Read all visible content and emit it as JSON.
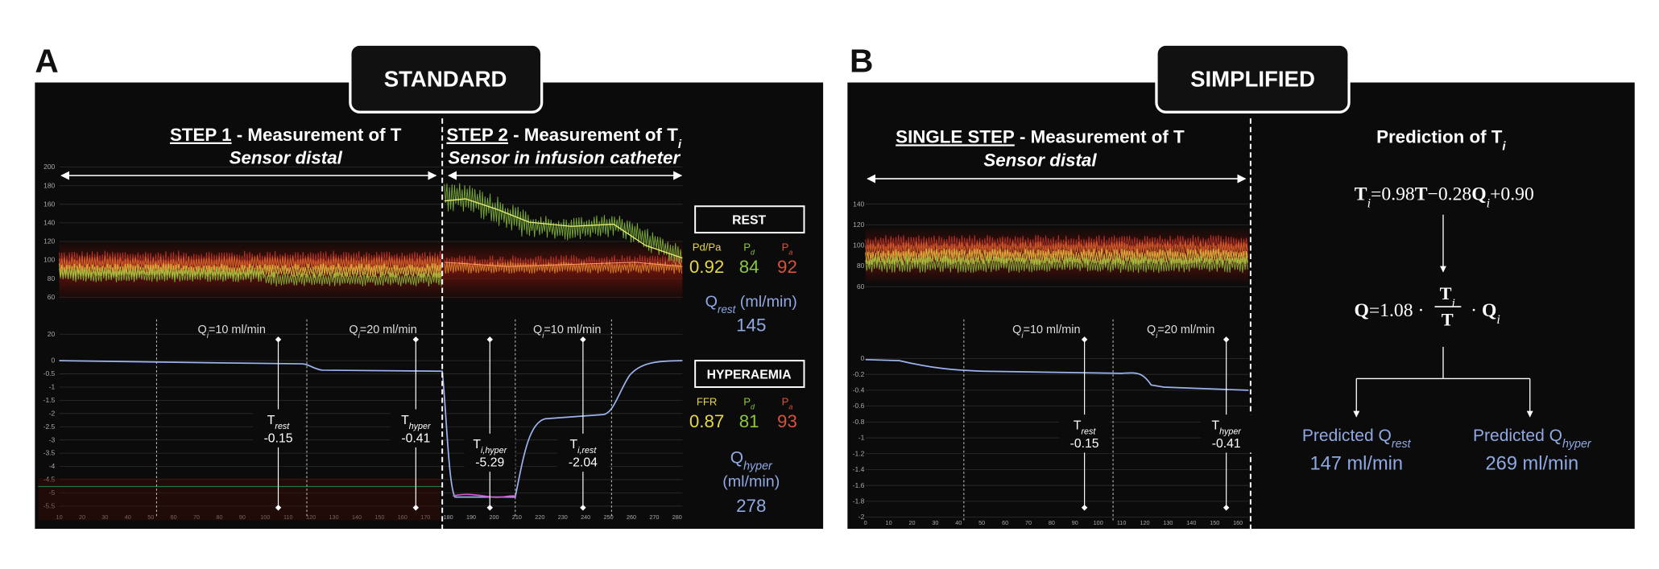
{
  "panel_a": {
    "label": "A",
    "tab": "STANDARD",
    "step1": {
      "title": "STEP 1",
      "rest": " - Measurement of T",
      "subtitle": "Sensor distal"
    },
    "step2": {
      "title": "STEP 2",
      "rest": " - Measurement of T",
      "sub": "i",
      "subtitle": "Sensor in infusion catheter"
    },
    "upper_ticks": [
      200,
      180,
      160,
      140,
      120,
      100,
      80,
      60
    ],
    "lower_ticks": [
      20,
      0,
      -0.5,
      -1,
      -1.5,
      -2,
      -2.5,
      -3,
      -3.5,
      -4,
      -4.5,
      -5,
      -5.5
    ],
    "x_ticks": [
      10,
      20,
      30,
      40,
      50,
      60,
      70,
      80,
      90,
      100,
      110,
      120,
      130,
      140,
      150,
      160,
      170,
      180,
      190,
      200,
      210,
      220,
      230,
      240,
      250,
      260,
      270,
      280
    ],
    "flows": [
      {
        "symbol": "Q",
        "sub": "i",
        "text": "=10 ml/min"
      },
      {
        "symbol": "Q",
        "sub": "i",
        "text": "=20 ml/min"
      },
      {
        "symbol": "Q",
        "sub": "i",
        "text": "=10 ml/min"
      }
    ],
    "markers": [
      {
        "symbol": "T",
        "sub": "rest",
        "value": -0.15
      },
      {
        "symbol": "T",
        "sub": "hyper",
        "value": -0.41
      },
      {
        "symbol": "T",
        "sub": "i,hyper",
        "value": -5.29
      },
      {
        "symbol": "T",
        "sub": "i,rest",
        "value": -2.04
      }
    ],
    "rest": {
      "title": "REST",
      "labels": [
        {
          "symbol": "Pd/Pa"
        },
        {
          "symbol": "P",
          "sub": "d"
        },
        {
          "symbol": "P",
          "sub": "a"
        }
      ],
      "values": [
        0.92,
        84,
        92
      ],
      "flow": {
        "symbol": "Q",
        "sub": "rest",
        "unit": " (ml/min)",
        "value": 145
      }
    },
    "hyperaemia": {
      "title": "HYPERAEMIA",
      "labels": [
        {
          "symbol": "FFR"
        },
        {
          "symbol": "P",
          "sub": "d"
        },
        {
          "symbol": "P",
          "sub": "a"
        }
      ],
      "values": [
        0.87,
        81,
        93
      ],
      "flow": {
        "symbol": "Q",
        "sub": "hyper",
        "unit": "(ml/min)",
        "value": 278
      }
    }
  },
  "panel_b": {
    "label": "B",
    "tab": "SIMPLIFIED",
    "step": {
      "title": "SINGLE STEP",
      "rest": " - Measurement of T",
      "subtitle": "Sensor distal"
    },
    "upper_ticks": [
      140,
      120,
      100,
      80,
      60
    ],
    "lower_ticks": [
      0,
      -0.2,
      -0.4,
      -0.6,
      -0.8,
      -1,
      -1.2,
      -1.4,
      -1.6,
      -1.8,
      -2
    ],
    "x_ticks": [
      0,
      10,
      20,
      30,
      40,
      50,
      60,
      70,
      80,
      90,
      100,
      110,
      120,
      130,
      140,
      150,
      160
    ],
    "flows": [
      {
        "symbol": "Q",
        "sub": "i",
        "text": "=10 ml/min"
      },
      {
        "symbol": "Q",
        "sub": "i",
        "text": "=20 ml/min"
      }
    ],
    "markers": [
      {
        "symbol": "T",
        "sub": "rest",
        "value": -0.15
      },
      {
        "symbol": "T",
        "sub": "hyper",
        "value": -0.41
      }
    ],
    "prediction": {
      "title": "Prediction of T",
      "title_sub": "i",
      "formula_1": [
        {
          "b": "T"
        },
        {
          "sub": "i"
        },
        {
          "text": "=0.98"
        },
        {
          "b": "T"
        },
        {
          "text": "−0.28"
        },
        {
          "b": "Q"
        },
        {
          "sub": "i"
        },
        {
          "text": "+0.90"
        }
      ],
      "formula_2": {
        "left": [
          {
            "b": "Q"
          },
          {
            "text": "=1.08 ·"
          }
        ],
        "numerator": [
          {
            "b": "T"
          },
          {
            "sub": "i"
          }
        ],
        "denominator": [
          {
            "b": "T"
          }
        ],
        "right": [
          {
            "text": "· "
          },
          {
            "b": "Q"
          },
          {
            "sub": "i"
          }
        ]
      },
      "results": [
        {
          "label": "Predicted Q",
          "sub": "rest",
          "value": "147 ml/min"
        },
        {
          "label": "Predicted Q",
          "sub": "hyper",
          "value": "269 ml/min"
        }
      ]
    }
  }
}
